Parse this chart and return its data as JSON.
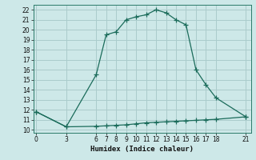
{
  "xlabel": "Humidex (Indice chaleur)",
  "bg_color": "#cde8e8",
  "grid_color": "#aacccc",
  "line_color": "#1a6b5a",
  "upper_x": [
    0,
    3,
    6,
    7,
    8,
    9,
    10,
    11,
    12,
    13,
    14,
    15,
    16,
    17,
    18,
    21
  ],
  "upper_y": [
    11.8,
    10.3,
    15.5,
    19.5,
    19.8,
    21.0,
    21.3,
    21.5,
    22.0,
    21.7,
    21.0,
    20.5,
    16.0,
    14.5,
    13.2,
    11.3
  ],
  "lower_x": [
    0,
    3,
    6,
    7,
    8,
    9,
    10,
    11,
    12,
    13,
    14,
    15,
    16,
    17,
    18,
    21
  ],
  "lower_y": [
    11.8,
    10.3,
    10.35,
    10.4,
    10.45,
    10.5,
    10.6,
    10.7,
    10.75,
    10.8,
    10.85,
    10.9,
    10.95,
    11.0,
    11.05,
    11.3
  ],
  "xticks": [
    0,
    3,
    6,
    7,
    8,
    9,
    10,
    11,
    12,
    13,
    14,
    15,
    16,
    17,
    18,
    21
  ],
  "yticks": [
    10,
    11,
    12,
    13,
    14,
    15,
    16,
    17,
    18,
    19,
    20,
    21,
    22
  ],
  "ylim": [
    9.7,
    22.5
  ],
  "xlim": [
    -0.3,
    21.5
  ],
  "tick_fontsize": 5.5,
  "xlabel_fontsize": 6.5
}
